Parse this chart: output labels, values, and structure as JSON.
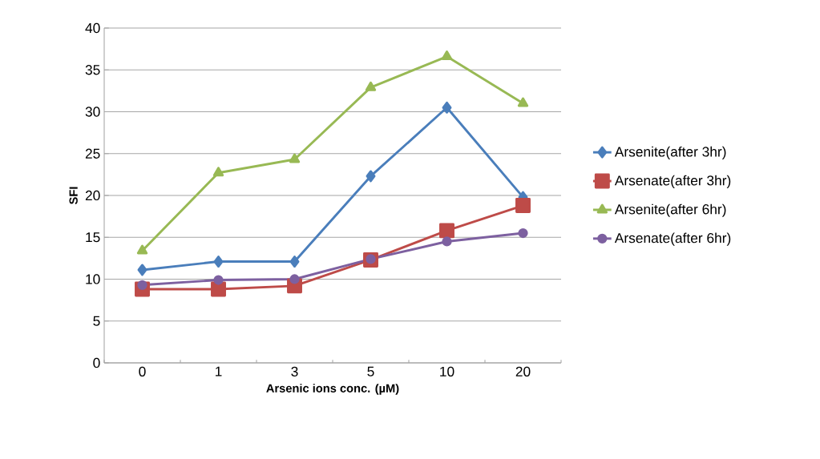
{
  "chart_data": {
    "type": "line",
    "xlabel": "Arsenic ions conc. (µM)",
    "ylabel": "SFI",
    "categories": [
      "0",
      "1",
      "3",
      "5",
      "10",
      "20"
    ],
    "series": [
      {
        "name": "Arsenite(after 3hr)",
        "color": "#4a7ebb",
        "marker": "diamond",
        "values": [
          11.1,
          12.1,
          12.1,
          22.3,
          30.5,
          19.8
        ]
      },
      {
        "name": "Arsenate(after 3hr)",
        "color": "#be4b48",
        "marker": "square",
        "values": [
          8.8,
          8.8,
          9.2,
          12.3,
          15.8,
          18.8
        ]
      },
      {
        "name": "Arsenite(after 6hr)",
        "color": "#98b954",
        "marker": "triangle",
        "values": [
          13.4,
          22.7,
          24.3,
          32.9,
          36.6,
          31.0
        ]
      },
      {
        "name": "Arsenate(after 6hr)",
        "color": "#7d60a0",
        "marker": "circle",
        "values": [
          9.3,
          9.9,
          10.0,
          12.4,
          14.5,
          15.5
        ]
      }
    ],
    "ylim": [
      0,
      40
    ],
    "yticks": [
      0,
      5,
      10,
      15,
      20,
      25,
      30,
      35,
      40
    ],
    "grid": "y",
    "legend": "right",
    "line_style": "solid"
  }
}
